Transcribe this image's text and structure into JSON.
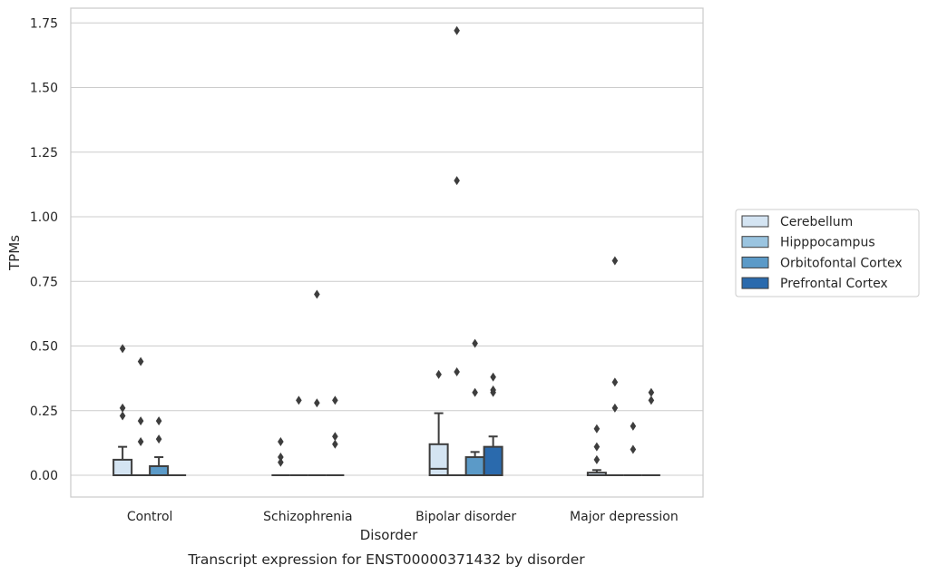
{
  "chart_data": {
    "type": "boxplot",
    "caption": "Transcript expression for ENST00000371432 by disorder",
    "xlabel": "Disorder",
    "ylabel": "TPMs",
    "ylim": [
      -0.08,
      1.81
    ],
    "yticks": [
      0.0,
      0.25,
      0.5,
      0.75,
      1.0,
      1.25,
      1.5,
      1.75
    ],
    "ytick_labels": [
      "0.00",
      "0.25",
      "0.50",
      "0.75",
      "1.00",
      "1.25",
      "1.50",
      "1.75"
    ],
    "grid": true,
    "legend_position": "right",
    "categories": [
      "Control",
      "Schizophrenia",
      "Bipolar disorder",
      "Major depression"
    ],
    "series": [
      {
        "name": "Cerebellum",
        "color": "#d4e4f2",
        "boxes": [
          {
            "q1": 0.0,
            "median": 0.0,
            "q3": 0.06,
            "whisker_low": 0.0,
            "whisker_high": 0.11,
            "outliers": [
              0.49,
              0.26,
              0.23
            ]
          },
          {
            "q1": 0.0,
            "median": 0.0,
            "q3": 0.0,
            "whisker_low": 0.0,
            "whisker_high": 0.0,
            "outliers": [
              0.13,
              0.07,
              0.05
            ]
          },
          {
            "q1": 0.0,
            "median": 0.025,
            "q3": 0.12,
            "whisker_low": 0.0,
            "whisker_high": 0.24,
            "outliers": [
              0.39
            ]
          },
          {
            "q1": 0.0,
            "median": 0.0,
            "q3": 0.01,
            "whisker_low": 0.0,
            "whisker_high": 0.02,
            "outliers": [
              0.18,
              0.11,
              0.06
            ]
          }
        ]
      },
      {
        "name": "Hipppocampus",
        "color": "#9ac4e0",
        "boxes": [
          {
            "q1": 0.0,
            "median": 0.0,
            "q3": 0.0,
            "whisker_low": 0.0,
            "whisker_high": 0.0,
            "outliers": [
              0.44,
              0.21,
              0.13
            ]
          },
          {
            "q1": 0.0,
            "median": 0.0,
            "q3": 0.0,
            "whisker_low": 0.0,
            "whisker_high": 0.0,
            "outliers": [
              0.29
            ]
          },
          {
            "q1": 0.0,
            "median": 0.0,
            "q3": 0.0,
            "whisker_low": 0.0,
            "whisker_high": 0.0,
            "outliers": [
              1.72,
              1.14,
              0.4
            ]
          },
          {
            "q1": 0.0,
            "median": 0.0,
            "q3": 0.0,
            "whisker_low": 0.0,
            "whisker_high": 0.0,
            "outliers": [
              0.83,
              0.36,
              0.26
            ]
          }
        ]
      },
      {
        "name": "Orbitofontal Cortex",
        "color": "#5b9ac8",
        "boxes": [
          {
            "q1": 0.0,
            "median": 0.0,
            "q3": 0.035,
            "whisker_low": 0.0,
            "whisker_high": 0.07,
            "outliers": [
              0.21,
              0.14
            ]
          },
          {
            "q1": 0.0,
            "median": 0.0,
            "q3": 0.0,
            "whisker_low": 0.0,
            "whisker_high": 0.0,
            "outliers": [
              0.7,
              0.28
            ]
          },
          {
            "q1": 0.0,
            "median": 0.0,
            "q3": 0.07,
            "whisker_low": 0.0,
            "whisker_high": 0.09,
            "outliers": [
              0.51,
              0.32
            ]
          },
          {
            "q1": 0.0,
            "median": 0.0,
            "q3": 0.0,
            "whisker_low": 0.0,
            "whisker_high": 0.0,
            "outliers": [
              0.19,
              0.1
            ]
          }
        ]
      },
      {
        "name": "Prefrontal Cortex",
        "color": "#2a6aad",
        "boxes": [
          {
            "q1": 0.0,
            "median": 0.0,
            "q3": 0.0,
            "whisker_low": 0.0,
            "whisker_high": 0.0,
            "outliers": []
          },
          {
            "q1": 0.0,
            "median": 0.0,
            "q3": 0.0,
            "whisker_low": 0.0,
            "whisker_high": 0.0,
            "outliers": [
              0.29,
              0.15,
              0.12
            ]
          },
          {
            "q1": 0.0,
            "median": 0.0,
            "q3": 0.11,
            "whisker_low": 0.0,
            "whisker_high": 0.15,
            "outliers": [
              0.38,
              0.33,
              0.32
            ]
          },
          {
            "q1": 0.0,
            "median": 0.0,
            "q3": 0.0,
            "whisker_low": 0.0,
            "whisker_high": 0.0,
            "outliers": [
              0.32,
              0.29
            ]
          }
        ]
      }
    ]
  }
}
